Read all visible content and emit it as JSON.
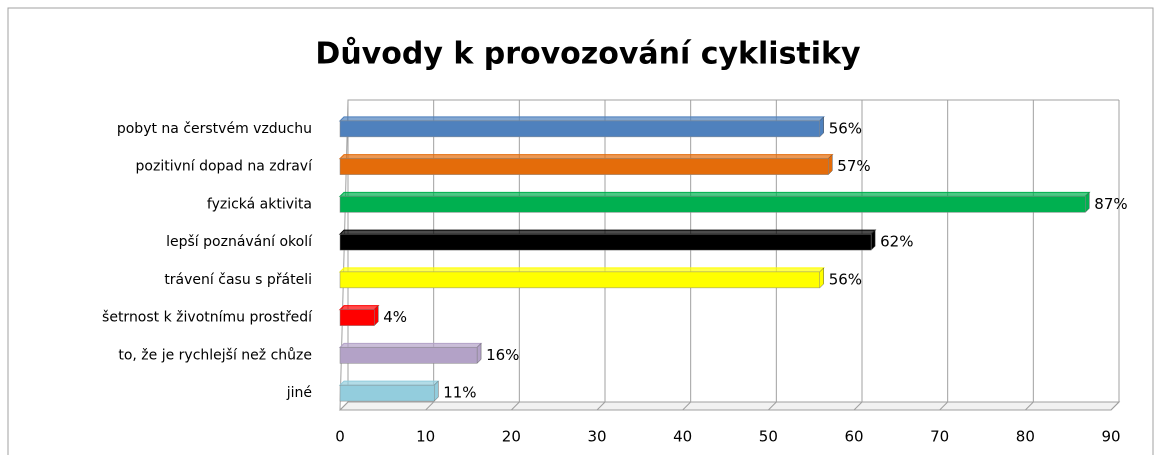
{
  "chart_data": {
    "type": "bar",
    "orientation": "horizontal",
    "title": "Důvody k provozování cyklistiky",
    "categories": [
      "pobyt na čerstvém vzduchu",
      "pozitivní dopad na zdraví",
      "fyzická aktivita",
      "lepší poznávání okolí",
      "trávení času s přáteli",
      "šetrnost k životnímu prostředí",
      "to, že je rychlejší než chůze",
      "jiné"
    ],
    "values": [
      56,
      57,
      87,
      62,
      56,
      4,
      16,
      11
    ],
    "value_labels": [
      "56%",
      "57%",
      "87%",
      "62%",
      "56%",
      "4%",
      "16%",
      "11%"
    ],
    "colors": [
      "#4f81bd",
      "#e46c0a",
      "#00b050",
      "#000000",
      "#ffff00",
      "#ff0000",
      "#b3a2c7",
      "#93cddd"
    ],
    "xlim": [
      0,
      90
    ],
    "xticks": [
      0,
      10,
      20,
      30,
      40,
      50,
      60,
      70,
      80,
      90
    ],
    "grid": true
  }
}
